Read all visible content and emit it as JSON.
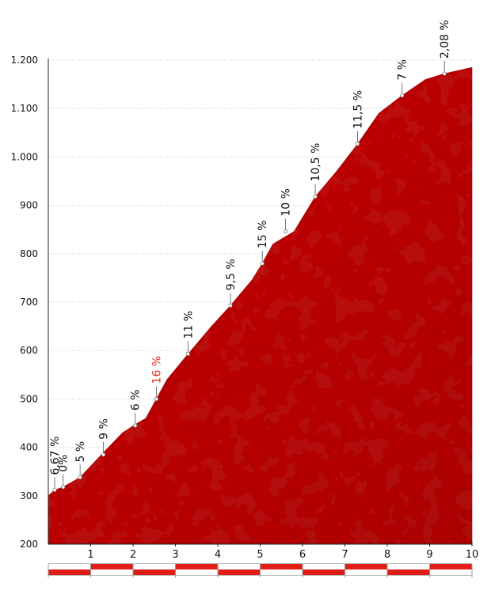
{
  "chart_data": {
    "type": "area",
    "title": "",
    "xlabel": "",
    "ylabel": "",
    "xlim": [
      0,
      10
    ],
    "ylim": [
      200,
      1200
    ],
    "y_ticks": [
      {
        "value": 200,
        "label": "200"
      },
      {
        "value": 300,
        "label": "300"
      },
      {
        "value": 400,
        "label": "400"
      },
      {
        "value": 500,
        "label": "500"
      },
      {
        "value": 600,
        "label": "600"
      },
      {
        "value": 700,
        "label": "700"
      },
      {
        "value": 800,
        "label": "800"
      },
      {
        "value": 900,
        "label": "900"
      },
      {
        "value": 1000,
        "label": "1.000"
      },
      {
        "value": 1100,
        "label": "1.100"
      },
      {
        "value": 1200,
        "label": "1.200"
      }
    ],
    "x_ticks": [
      {
        "value": 1,
        "label": "1"
      },
      {
        "value": 2,
        "label": "2"
      },
      {
        "value": 3,
        "label": "3"
      },
      {
        "value": 4,
        "label": "4"
      },
      {
        "value": 5,
        "label": "5"
      },
      {
        "value": 6,
        "label": "6"
      },
      {
        "value": 7,
        "label": "7"
      },
      {
        "value": 8,
        "label": "8"
      },
      {
        "value": 9,
        "label": "9"
      },
      {
        "value": 10,
        "label": "10"
      }
    ],
    "profile": {
      "x": [
        0,
        0.15,
        0.35,
        0.75,
        1.2,
        1.75,
        2.1,
        2.3,
        2.55,
        2.8,
        3.3,
        3.85,
        4.3,
        4.8,
        5.05,
        5.3,
        5.8,
        6.3,
        6.8,
        7.3,
        7.8,
        8.35,
        8.9,
        9.35,
        10
      ],
      "elevation": [
        300,
        312,
        318,
        338,
        380,
        430,
        450,
        460,
        500,
        540,
        593,
        650,
        693,
        745,
        780,
        820,
        846,
        918,
        970,
        1027,
        1090,
        1127,
        1160,
        1172,
        1185
      ]
    },
    "gradients": [
      {
        "x": 0.15,
        "elevation": 312,
        "label": "6,67 %",
        "steep": false
      },
      {
        "x": 0.35,
        "elevation": 318,
        "label": "0%",
        "steep": false
      },
      {
        "x": 0.75,
        "elevation": 338,
        "label": "5 %",
        "steep": false
      },
      {
        "x": 1.3,
        "elevation": 385,
        "label": "9 %",
        "steep": false
      },
      {
        "x": 2.05,
        "elevation": 445,
        "label": "6 %",
        "steep": false
      },
      {
        "x": 2.55,
        "elevation": 500,
        "label": "16 %",
        "steep": true
      },
      {
        "x": 3.3,
        "elevation": 593,
        "label": "11 %",
        "steep": false
      },
      {
        "x": 4.3,
        "elevation": 693,
        "label": "9,5 %",
        "steep": false
      },
      {
        "x": 5.05,
        "elevation": 780,
        "label": "15 %",
        "steep": false
      },
      {
        "x": 5.6,
        "elevation": 846,
        "label": "10 %",
        "steep": false
      },
      {
        "x": 6.3,
        "elevation": 918,
        "label": "10,5 %",
        "steep": false
      },
      {
        "x": 7.3,
        "elevation": 1027,
        "label": "11,5 %",
        "steep": false
      },
      {
        "x": 8.35,
        "elevation": 1127,
        "label": "7 %",
        "steep": false
      },
      {
        "x": 9.35,
        "elevation": 1172,
        "label": "2,08 %",
        "steep": false
      }
    ]
  },
  "colors": {
    "fill": "#c20d0d",
    "fill_dark": "#9e0707",
    "steep_label": "#e8301e",
    "band": "#e21d16"
  }
}
